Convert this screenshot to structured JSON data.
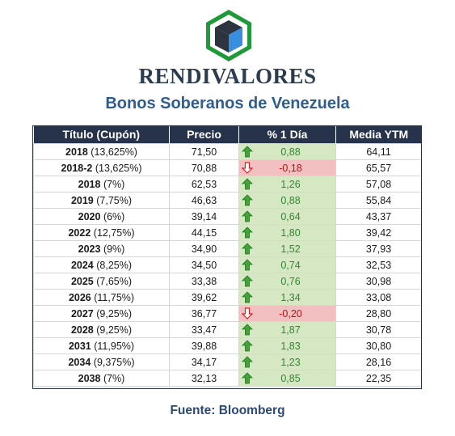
{
  "brand": {
    "name": "RENDIVALORES",
    "logo_icon": "cube-hexagon-logo"
  },
  "subtitle": "Bonos Soberanos de Venezuela",
  "table": {
    "headers": [
      "Título (Cupón)",
      "Precio",
      "% 1 Día",
      "Media YTM"
    ],
    "rows": [
      {
        "name": "2018",
        "coupon": "(13,625%)",
        "price": "71,50",
        "change": "0,88",
        "direction": "up",
        "ytm": "64,11"
      },
      {
        "name": "2018-2",
        "coupon": "(13,625%)",
        "price": "70,88",
        "change": "-0,18",
        "direction": "down",
        "ytm": "65,57"
      },
      {
        "name": "2018",
        "coupon": "(7%)",
        "price": "62,53",
        "change": "1,26",
        "direction": "up",
        "ytm": "57,08"
      },
      {
        "name": "2019",
        "coupon": "(7,75%)",
        "price": "46,63",
        "change": "0,88",
        "direction": "up",
        "ytm": "55,84"
      },
      {
        "name": "2020",
        "coupon": "(6%)",
        "price": "39,14",
        "change": "0,64",
        "direction": "up",
        "ytm": "43,37"
      },
      {
        "name": "2022",
        "coupon": "(12,75%)",
        "price": "44,15",
        "change": "1,80",
        "direction": "up",
        "ytm": "39,42"
      },
      {
        "name": "2023",
        "coupon": "(9%)",
        "price": "34,90",
        "change": "1,52",
        "direction": "up",
        "ytm": "37,93"
      },
      {
        "name": "2024",
        "coupon": "(8,25%)",
        "price": "34,50",
        "change": "0,74",
        "direction": "up",
        "ytm": "32,53"
      },
      {
        "name": "2025",
        "coupon": "(7,65%)",
        "price": "33,38",
        "change": "0,76",
        "direction": "up",
        "ytm": "30,98"
      },
      {
        "name": "2026",
        "coupon": "(11,75%)",
        "price": "39,62",
        "change": "1,34",
        "direction": "up",
        "ytm": "33,08"
      },
      {
        "name": "2027",
        "coupon": "(9,25%)",
        "price": "36,77",
        "change": "-0,20",
        "direction": "down",
        "ytm": "28,80"
      },
      {
        "name": "2028",
        "coupon": "(9,25%)",
        "price": "33,47",
        "change": "1,87",
        "direction": "up",
        "ytm": "30,78"
      },
      {
        "name": "2031",
        "coupon": "(11,95%)",
        "price": "39,88",
        "change": "1,83",
        "direction": "up",
        "ytm": "30,80"
      },
      {
        "name": "2034",
        "coupon": "(9,375%)",
        "price": "34,17",
        "change": "1,23",
        "direction": "up",
        "ytm": "28,16"
      },
      {
        "name": "2038",
        "coupon": "(7%)",
        "price": "32,13",
        "change": "0,85",
        "direction": "up",
        "ytm": "22,35"
      }
    ]
  },
  "source": "Fuente: Bloomberg",
  "colors": {
    "header_bg": "#27324b",
    "up_bg": "#d5e7c3",
    "up_text": "#2f8a2f",
    "down_bg": "#f2c0c0",
    "down_text": "#b01515",
    "brand_text": "#2b3c50",
    "subtitle_text": "#2f5e8e"
  }
}
